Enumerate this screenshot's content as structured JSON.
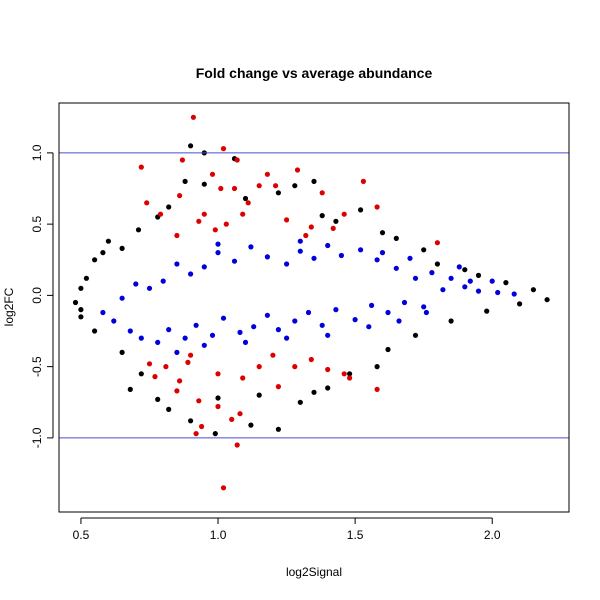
{
  "chart_data": {
    "type": "scatter",
    "title": "Fold change vs average abundance",
    "xlabel": "log2Signal",
    "ylabel": "log2FC",
    "xlim": [
      0.42,
      2.28
    ],
    "ylim": [
      -1.52,
      1.35
    ],
    "x_ticks": [
      0.5,
      1.0,
      1.5,
      2.0
    ],
    "x_tick_labels": [
      "0.5",
      "1.0",
      "1.5",
      "2.0"
    ],
    "y_ticks": [
      -1.0,
      -0.5,
      0.0,
      0.5,
      1.0
    ],
    "y_tick_labels": [
      "-1.0",
      "-0.5",
      "0.0",
      "0.5",
      "1.0"
    ],
    "grid": false,
    "legend": "none",
    "reference_lines": [
      {
        "axis": "y",
        "value": 1.0,
        "color": "#4B4BD6"
      },
      {
        "axis": "y",
        "value": -1.0,
        "color": "#4B4BD6"
      }
    ],
    "series": [
      {
        "color": "#000000",
        "points": [
          [
            0.9,
            1.05
          ],
          [
            0.95,
            1.0
          ],
          [
            1.06,
            0.96
          ],
          [
            0.88,
            0.8
          ],
          [
            0.95,
            0.78
          ],
          [
            1.35,
            0.8
          ],
          [
            1.28,
            0.77
          ],
          [
            1.22,
            0.72
          ],
          [
            1.1,
            0.68
          ],
          [
            0.82,
            0.62
          ],
          [
            1.38,
            0.56
          ],
          [
            1.52,
            0.6
          ],
          [
            0.78,
            0.55
          ],
          [
            1.43,
            0.52
          ],
          [
            0.71,
            0.46
          ],
          [
            1.6,
            0.44
          ],
          [
            0.6,
            0.38
          ],
          [
            1.65,
            0.4
          ],
          [
            0.55,
            0.25
          ],
          [
            1.8,
            0.22
          ],
          [
            1.9,
            0.18
          ],
          [
            1.95,
            0.14
          ],
          [
            2.05,
            0.09
          ],
          [
            2.15,
            0.04
          ],
          [
            2.2,
            -0.03
          ],
          [
            2.1,
            -0.06
          ],
          [
            1.98,
            -0.11
          ],
          [
            1.85,
            -0.18
          ],
          [
            1.72,
            -0.28
          ],
          [
            1.62,
            -0.38
          ],
          [
            1.58,
            -0.5
          ],
          [
            1.48,
            -0.55
          ],
          [
            1.4,
            -0.65
          ],
          [
            0.5,
            -0.15
          ],
          [
            0.55,
            -0.25
          ],
          [
            0.65,
            -0.4
          ],
          [
            0.72,
            -0.55
          ],
          [
            0.68,
            -0.66
          ],
          [
            0.78,
            -0.73
          ],
          [
            0.82,
            -0.8
          ],
          [
            0.9,
            -0.88
          ],
          [
            0.99,
            -0.97
          ],
          [
            1.12,
            -0.91
          ],
          [
            1.22,
            -0.94
          ],
          [
            1.0,
            -0.72
          ],
          [
            1.15,
            -0.7
          ],
          [
            1.3,
            -0.75
          ],
          [
            1.35,
            -0.68
          ],
          [
            0.58,
            0.3
          ],
          [
            0.65,
            0.33
          ],
          [
            1.75,
            0.32
          ],
          [
            0.52,
            0.12
          ],
          [
            0.5,
            0.05
          ],
          [
            0.48,
            -0.05
          ],
          [
            0.5,
            -0.1
          ]
        ]
      },
      {
        "color": "#DD0000",
        "points": [
          [
            0.91,
            1.25
          ],
          [
            1.02,
            1.03
          ],
          [
            0.87,
            0.95
          ],
          [
            1.07,
            0.95
          ],
          [
            0.72,
            0.9
          ],
          [
            1.29,
            0.88
          ],
          [
            0.98,
            0.85
          ],
          [
            1.18,
            0.85
          ],
          [
            1.15,
            0.77
          ],
          [
            1.21,
            0.77
          ],
          [
            1.01,
            0.75
          ],
          [
            1.06,
            0.75
          ],
          [
            0.86,
            0.7
          ],
          [
            1.38,
            0.72
          ],
          [
            1.53,
            0.8
          ],
          [
            0.74,
            0.65
          ],
          [
            1.11,
            0.65
          ],
          [
            0.79,
            0.57
          ],
          [
            0.95,
            0.57
          ],
          [
            1.09,
            0.57
          ],
          [
            1.58,
            0.62
          ],
          [
            1.46,
            0.57
          ],
          [
            1.25,
            0.53
          ],
          [
            0.93,
            0.52
          ],
          [
            1.03,
            0.5
          ],
          [
            1.34,
            0.48
          ],
          [
            1.42,
            0.47
          ],
          [
            1.8,
            0.37
          ],
          [
            1.32,
            0.42
          ],
          [
            0.99,
            0.46
          ],
          [
            0.85,
            0.42
          ],
          [
            0.9,
            -0.42
          ],
          [
            0.89,
            -0.47
          ],
          [
            0.81,
            -0.5
          ],
          [
            0.75,
            -0.48
          ],
          [
            0.77,
            -0.57
          ],
          [
            0.86,
            -0.6
          ],
          [
            1.0,
            -0.55
          ],
          [
            1.09,
            -0.58
          ],
          [
            1.15,
            -0.5
          ],
          [
            1.2,
            -0.42
          ],
          [
            1.28,
            -0.5
          ],
          [
            1.34,
            -0.45
          ],
          [
            1.4,
            -0.52
          ],
          [
            1.46,
            -0.55
          ],
          [
            1.58,
            -0.66
          ],
          [
            1.48,
            -0.58
          ],
          [
            1.22,
            -0.64
          ],
          [
            0.85,
            -0.67
          ],
          [
            0.93,
            -0.74
          ],
          [
            1.0,
            -0.78
          ],
          [
            1.08,
            -0.83
          ],
          [
            1.05,
            -0.87
          ],
          [
            0.94,
            -0.92
          ],
          [
            0.92,
            -0.97
          ],
          [
            1.07,
            -1.05
          ],
          [
            1.02,
            -1.35
          ]
        ]
      },
      {
        "color": "#0000DD",
        "points": [
          [
            0.58,
            -0.12
          ],
          [
            0.62,
            -0.18
          ],
          [
            0.68,
            -0.25
          ],
          [
            0.72,
            -0.3
          ],
          [
            0.78,
            -0.33
          ],
          [
            0.82,
            -0.24
          ],
          [
            0.88,
            -0.3
          ],
          [
            0.92,
            -0.21
          ],
          [
            0.98,
            -0.28
          ],
          [
            1.02,
            -0.16
          ],
          [
            1.08,
            -0.26
          ],
          [
            1.13,
            -0.22
          ],
          [
            1.18,
            -0.14
          ],
          [
            1.22,
            -0.24
          ],
          [
            1.28,
            -0.18
          ],
          [
            1.33,
            -0.12
          ],
          [
            1.38,
            -0.21
          ],
          [
            1.43,
            -0.1
          ],
          [
            1.5,
            -0.17
          ],
          [
            1.56,
            -0.07
          ],
          [
            1.62,
            -0.12
          ],
          [
            1.68,
            -0.05
          ],
          [
            1.75,
            -0.08
          ],
          [
            1.82,
            0.04
          ],
          [
            1.9,
            0.06
          ],
          [
            1.95,
            0.03
          ],
          [
            2.02,
            0.02
          ],
          [
            2.08,
            0.01
          ],
          [
            1.72,
            0.12
          ],
          [
            1.78,
            0.16
          ],
          [
            1.85,
            0.12
          ],
          [
            1.92,
            0.1
          ],
          [
            1.65,
            0.19
          ],
          [
            1.58,
            0.25
          ],
          [
            1.52,
            0.32
          ],
          [
            1.45,
            0.28
          ],
          [
            1.4,
            0.35
          ],
          [
            1.35,
            0.26
          ],
          [
            1.3,
            0.31
          ],
          [
            1.25,
            0.22
          ],
          [
            1.18,
            0.27
          ],
          [
            1.12,
            0.34
          ],
          [
            1.06,
            0.24
          ],
          [
            1.0,
            0.3
          ],
          [
            0.95,
            0.2
          ],
          [
            0.9,
            0.15
          ],
          [
            0.85,
            0.22
          ],
          [
            0.8,
            0.1
          ],
          [
            0.75,
            0.05
          ],
          [
            0.7,
            0.08
          ],
          [
            0.65,
            -0.02
          ],
          [
            1.1,
            -0.33
          ],
          [
            1.25,
            -0.3
          ],
          [
            1.4,
            -0.28
          ],
          [
            1.55,
            -0.22
          ],
          [
            0.95,
            -0.35
          ],
          [
            0.85,
            -0.4
          ],
          [
            1.0,
            0.36
          ],
          [
            1.3,
            0.38
          ],
          [
            1.6,
            0.3
          ],
          [
            1.7,
            0.26
          ],
          [
            1.88,
            0.2
          ],
          [
            2.0,
            0.1
          ],
          [
            1.66,
            -0.18
          ],
          [
            1.76,
            -0.12
          ]
        ]
      }
    ]
  }
}
